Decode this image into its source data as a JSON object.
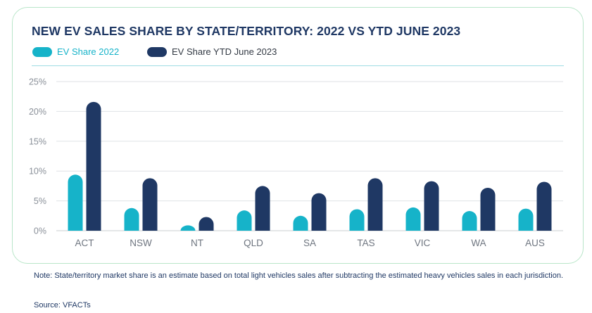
{
  "title": "NEW EV SALES SHARE BY STATE/TERRITORY: 2022 VS YTD JUNE 2023",
  "colors": {
    "series_2022": "#16b3c9",
    "series_2023": "#1f3864",
    "title": "#1f3864",
    "border": "#b9e6c9"
  },
  "legend": [
    {
      "label": "EV Share 2022",
      "color": "#16b3c9"
    },
    {
      "label": "EV Share YTD June 2023",
      "color": "#1f3864"
    }
  ],
  "chart_data": {
    "type": "bar",
    "title": "NEW EV SALES SHARE BY STATE/TERRITORY: 2022 VS YTD JUNE 2023",
    "categories": [
      "ACT",
      "NSW",
      "NT",
      "QLD",
      "SA",
      "TAS",
      "VIC",
      "WA",
      "AUS"
    ],
    "series": [
      {
        "name": "EV Share 2022",
        "values": [
          9.4,
          3.8,
          0.9,
          3.4,
          2.5,
          3.6,
          3.9,
          3.3,
          3.7
        ]
      },
      {
        "name": "EV Share YTD June 2023",
        "values": [
          21.6,
          8.8,
          2.3,
          7.5,
          6.3,
          8.8,
          8.3,
          7.2,
          8.2
        ]
      }
    ],
    "ylim": [
      0,
      25
    ],
    "yticks": [
      0,
      5,
      10,
      15,
      20,
      25
    ],
    "ytick_labels": [
      "0%",
      "5%",
      "10%",
      "15%",
      "20%",
      "25%"
    ],
    "grid": true,
    "legend_position": "top-left"
  },
  "note": "Note: State/territory market share is an estimate based on total light vehicles sales after subtracting the estimated heavy vehicles sales in each jurisdiction.",
  "source_label": "Source:",
  "source_value": "VFACTs"
}
